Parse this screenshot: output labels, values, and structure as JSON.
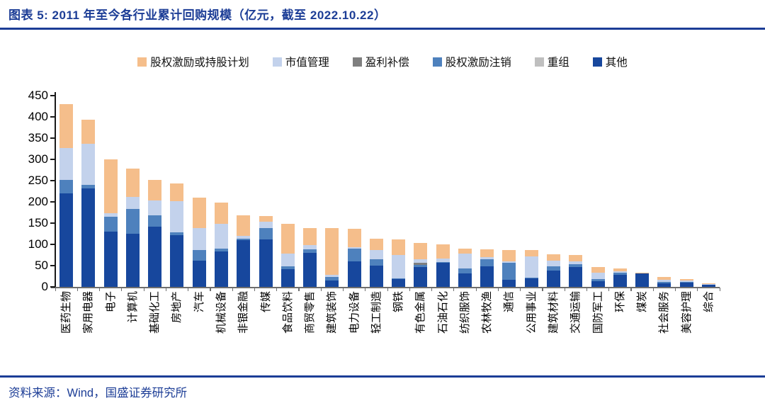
{
  "header": {
    "title": "图表 5:  2011 年至今各行业累计回购规模（亿元，截至 2022.10.22）"
  },
  "footer": {
    "source": "资料来源：Wind，国盛证券研究所"
  },
  "colors": {
    "accent_navy": "#1C3D96",
    "axis_black": "#1A1A1A",
    "baseline_gray": "#6E6E6E",
    "label_black": "#000000"
  },
  "chart_data": {
    "type": "bar",
    "stacked": true,
    "title": "2011 年至今各行业累计回购规模",
    "unit": "亿元",
    "as_of": "2022.10.22",
    "ylim": [
      0,
      450
    ],
    "yticks": [
      0,
      50,
      100,
      150,
      200,
      250,
      300,
      350,
      400,
      450
    ],
    "grid": false,
    "legend_position": "top",
    "categories": [
      "医药生物",
      "家用电器",
      "电子",
      "计算机",
      "基础化工",
      "房地产",
      "汽车",
      "机械设备",
      "非银金融",
      "传媒",
      "食品饮料",
      "商贸零售",
      "建筑装饰",
      "电力设备",
      "轻工制造",
      "钢铁",
      "有色金属",
      "石油石化",
      "纺织服饰",
      "农林牧渔",
      "通信",
      "公用事业",
      "建筑材料",
      "交通运输",
      "国防军工",
      "环保",
      "煤炭",
      "社会服务",
      "美容护理",
      "综合"
    ],
    "series": [
      {
        "name": "股权激励或持股计划",
        "color": "#F5BE8B",
        "values": [
          103,
          56,
          127,
          67,
          47,
          42,
          71,
          50,
          49,
          12,
          69,
          40,
          110,
          43,
          26,
          36,
          39,
          33,
          11,
          18,
          27,
          14,
          14,
          15,
          14,
          7,
          1,
          8,
          4,
          2
        ]
      },
      {
        "name": "市值管理",
        "color": "#C3D2EC",
        "values": [
          75,
          97,
          8,
          27,
          36,
          72,
          53,
          59,
          6,
          15,
          31,
          9,
          5,
          4,
          22,
          55,
          9,
          8,
          36,
          5,
          4,
          50,
          14,
          6,
          15,
          3,
          1,
          5,
          4,
          2
        ]
      },
      {
        "name": "盈利补偿",
        "color": "#7F7F7F",
        "values": [
          0,
          0,
          0,
          0,
          0,
          0,
          0,
          0,
          0,
          0,
          0,
          0,
          0,
          0,
          0,
          0,
          4,
          0,
          0,
          0,
          0,
          0,
          0,
          0,
          0,
          0,
          0,
          0,
          0,
          0
        ]
      },
      {
        "name": "股权激励注销",
        "color": "#4E81BD",
        "values": [
          32,
          8,
          35,
          59,
          26,
          8,
          25,
          6,
          4,
          27,
          7,
          9,
          8,
          30,
          15,
          2,
          6,
          3,
          12,
          16,
          39,
          2,
          10,
          8,
          5,
          4,
          0,
          3,
          1,
          0
        ]
      },
      {
        "name": "重组",
        "color": "#BFBFBF",
        "values": [
          0,
          0,
          0,
          0,
          0,
          0,
          0,
          0,
          0,
          0,
          0,
          0,
          0,
          0,
          0,
          0,
          0,
          0,
          0,
          0,
          0,
          0,
          0,
          0,
          0,
          0,
          0,
          0,
          0,
          0
        ]
      },
      {
        "name": "其他",
        "color": "#17479D",
        "values": [
          220,
          232,
          130,
          125,
          142,
          121,
          61,
          84,
          110,
          112,
          41,
          80,
          15,
          60,
          50,
          18,
          46,
          56,
          31,
          49,
          17,
          20,
          38,
          46,
          13,
          29,
          32,
          8,
          10,
          5
        ]
      }
    ],
    "stack_order_bottom_to_top": [
      "其他",
      "重组",
      "股权激励注销",
      "盈利补偿",
      "市值管理",
      "股权激励或持股计划"
    ]
  }
}
